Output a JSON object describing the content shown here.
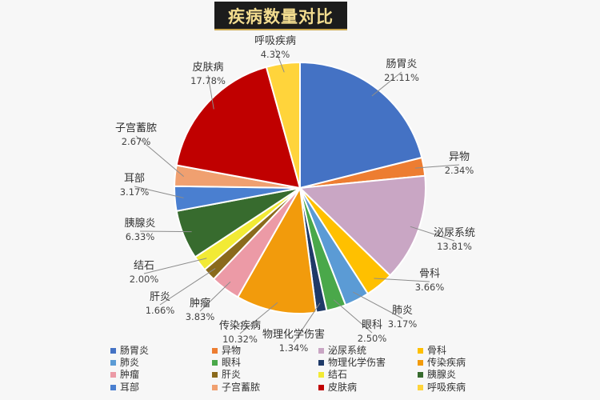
{
  "chart_data": {
    "type": "pie",
    "title": "疾病数量对比",
    "slices": [
      {
        "label": "肠胃炎",
        "value": 21.11,
        "display": "21.11%",
        "color": "#4472c4"
      },
      {
        "label": "异物",
        "value": 2.34,
        "display": "2.34%",
        "color": "#ed7d31"
      },
      {
        "label": "泌尿系统",
        "value": 13.81,
        "display": "13.81%",
        "color": "#c9a6c4"
      },
      {
        "label": "骨科",
        "value": 3.66,
        "display": "3.66%",
        "color": "#ffc000"
      },
      {
        "label": "肺炎",
        "value": 3.17,
        "display": "3.17%",
        "color": "#5b9bd5"
      },
      {
        "label": "眼科",
        "value": 2.5,
        "display": "2.50%",
        "color": "#4aa84a"
      },
      {
        "label": "物理化学伤害",
        "value": 1.34,
        "display": "1.34%",
        "color": "#1f3a68"
      },
      {
        "label": "传染疾病",
        "value": 10.32,
        "display": "10.32%",
        "color": "#f29b0c"
      },
      {
        "label": "肿瘤",
        "value": 3.83,
        "display": "3.83%",
        "color": "#ec9aa6"
      },
      {
        "label": "肝炎",
        "value": 1.66,
        "display": "1.66%",
        "color": "#8a6a1c"
      },
      {
        "label": "结石",
        "value": 2.0,
        "display": "2.00%",
        "color": "#f2ea35"
      },
      {
        "label": "胰腺炎",
        "value": 6.33,
        "display": "6.33%",
        "color": "#376b2e"
      },
      {
        "label": "耳部",
        "value": 3.17,
        "display": "3.17%",
        "color": "#4a7fd0"
      },
      {
        "label": "子宫蓄脓",
        "value": 2.67,
        "display": "2.67%",
        "color": "#f0a070"
      },
      {
        "label": "皮肤病",
        "value": 17.78,
        "display": "17.78%",
        "color": "#c00000"
      },
      {
        "label": "呼吸疾病",
        "value": 4.32,
        "display": "4.32%",
        "color": "#ffd43b"
      }
    ],
    "legend": {
      "placement": "bottom",
      "columns": 4
    }
  }
}
